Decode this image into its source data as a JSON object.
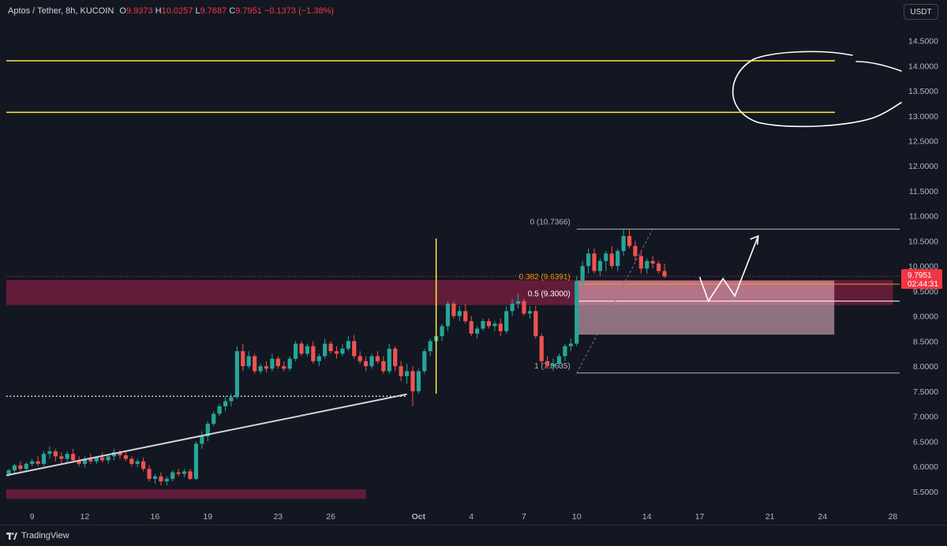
{
  "header": {
    "symbol": "Aptos / Tether, 8h, KUCOIN",
    "open_label": "O",
    "open": "9.9373",
    "high_label": "H",
    "high": "10.0257",
    "low_label": "L",
    "low": "9.7687",
    "close_label": "C",
    "close": "9.7951",
    "change": "−0.1373 (−1.38%)"
  },
  "currency_button": "USDT",
  "footer": {
    "brand": "TradingView",
    "logo_icon": "tradingview-logo-icon"
  },
  "colors": {
    "background": "#131722",
    "up": "#26a69a",
    "down": "#ef5350",
    "level_line": "#ffeb3b",
    "supply_zone": "#6b1d3c",
    "demand_box": "#f8bbd0",
    "fib_line": "#b2b5be",
    "fib_orange": "#ff9800",
    "price_tag": "#f23645"
  },
  "chart_data": {
    "type": "candlestick",
    "symbol": "Aptos / Tether",
    "interval": "8h",
    "exchange": "KUCOIN",
    "ylim": [
      5.15,
      14.95
    ],
    "y_ticks": [
      "5.5000",
      "6.0000",
      "6.5000",
      "7.0000",
      "7.5000",
      "8.0000",
      "8.5000",
      "9.0000",
      "9.5000",
      "10.0000",
      "10.5000",
      "11.0000",
      "11.5000",
      "12.0000",
      "12.5000",
      "13.0000",
      "13.5000",
      "14.0000",
      "14.5000"
    ],
    "x_ticks": [
      {
        "label": "9",
        "i": 4
      },
      {
        "label": "12",
        "i": 13
      },
      {
        "label": "16",
        "i": 25
      },
      {
        "label": "19",
        "i": 34
      },
      {
        "label": "23",
        "i": 46
      },
      {
        "label": "26",
        "i": 55
      },
      {
        "label": "Oct",
        "i": 70,
        "bold": true
      },
      {
        "label": "4",
        "i": 79
      },
      {
        "label": "7",
        "i": 88
      },
      {
        "label": "10",
        "i": 97
      },
      {
        "label": "14",
        "i": 109
      },
      {
        "label": "17",
        "i": 118
      },
      {
        "label": "21",
        "i": 130
      },
      {
        "label": "24",
        "i": 139
      },
      {
        "label": "28",
        "i": 151
      }
    ],
    "candles": [
      [
        5.85,
        5.95,
        5.8,
        5.92
      ],
      [
        5.92,
        6.05,
        5.85,
        6.02
      ],
      [
        6.02,
        6.1,
        5.9,
        5.95
      ],
      [
        5.95,
        6.08,
        5.9,
        6.05
      ],
      [
        6.05,
        6.15,
        6.0,
        6.1
      ],
      [
        6.1,
        6.2,
        6.0,
        6.05
      ],
      [
        6.05,
        6.3,
        6.0,
        6.25
      ],
      [
        6.25,
        6.4,
        6.15,
        6.3
      ],
      [
        6.3,
        6.35,
        6.1,
        6.2
      ],
      [
        6.2,
        6.28,
        6.05,
        6.15
      ],
      [
        6.15,
        6.3,
        6.05,
        6.25
      ],
      [
        6.25,
        6.35,
        6.1,
        6.12
      ],
      [
        6.12,
        6.2,
        6.0,
        6.05
      ],
      [
        6.05,
        6.2,
        5.98,
        6.15
      ],
      [
        6.15,
        6.25,
        6.05,
        6.1
      ],
      [
        6.1,
        6.2,
        6.05,
        6.18
      ],
      [
        6.18,
        6.28,
        6.08,
        6.12
      ],
      [
        6.12,
        6.22,
        6.05,
        6.2
      ],
      [
        6.2,
        6.35,
        6.12,
        6.28
      ],
      [
        6.28,
        6.32,
        6.15,
        6.22
      ],
      [
        6.22,
        6.3,
        6.1,
        6.15
      ],
      [
        6.15,
        6.2,
        6.0,
        6.05
      ],
      [
        6.05,
        6.15,
        5.98,
        6.1
      ],
      [
        6.1,
        6.18,
        5.9,
        5.95
      ],
      [
        5.95,
        6.02,
        5.7,
        5.75
      ],
      [
        5.75,
        5.85,
        5.65,
        5.8
      ],
      [
        5.8,
        5.88,
        5.62,
        5.7
      ],
      [
        5.7,
        5.8,
        5.62,
        5.75
      ],
      [
        5.75,
        5.92,
        5.7,
        5.88
      ],
      [
        5.88,
        5.95,
        5.8,
        5.85
      ],
      [
        5.85,
        5.95,
        5.78,
        5.9
      ],
      [
        5.9,
        5.95,
        5.72,
        5.75
      ],
      [
        5.75,
        6.5,
        5.72,
        6.45
      ],
      [
        6.45,
        6.7,
        6.35,
        6.6
      ],
      [
        6.6,
        6.9,
        6.5,
        6.85
      ],
      [
        6.85,
        7.1,
        6.8,
        7.05
      ],
      [
        7.05,
        7.25,
        7.0,
        7.2
      ],
      [
        7.2,
        7.4,
        7.1,
        7.3
      ],
      [
        7.3,
        7.45,
        7.2,
        7.38
      ],
      [
        7.38,
        8.4,
        7.35,
        8.3
      ],
      [
        8.3,
        8.45,
        7.9,
        8.0
      ],
      [
        8.0,
        8.3,
        7.95,
        8.2
      ],
      [
        8.2,
        8.25,
        7.85,
        7.9
      ],
      [
        7.9,
        8.05,
        7.85,
        8.0
      ],
      [
        8.0,
        8.1,
        7.88,
        7.95
      ],
      [
        7.95,
        8.25,
        7.9,
        8.15
      ],
      [
        8.15,
        8.2,
        7.95,
        8.0
      ],
      [
        8.0,
        8.1,
        7.9,
        7.95
      ],
      [
        7.95,
        8.2,
        7.9,
        8.15
      ],
      [
        8.15,
        8.5,
        8.1,
        8.45
      ],
      [
        8.45,
        8.5,
        8.2,
        8.25
      ],
      [
        8.25,
        8.45,
        8.2,
        8.4
      ],
      [
        8.4,
        8.5,
        8.05,
        8.1
      ],
      [
        8.1,
        8.25,
        8.0,
        8.2
      ],
      [
        8.2,
        8.55,
        8.15,
        8.45
      ],
      [
        8.45,
        8.5,
        8.25,
        8.3
      ],
      [
        8.3,
        8.4,
        8.15,
        8.25
      ],
      [
        8.25,
        8.45,
        8.2,
        8.35
      ],
      [
        8.35,
        8.6,
        8.3,
        8.5
      ],
      [
        8.5,
        8.62,
        8.15,
        8.2
      ],
      [
        8.2,
        8.3,
        8.05,
        8.1
      ],
      [
        8.1,
        8.2,
        7.9,
        8.0
      ],
      [
        8.0,
        8.25,
        7.95,
        8.2
      ],
      [
        8.2,
        8.3,
        8.05,
        8.1
      ],
      [
        8.1,
        8.2,
        7.85,
        7.9
      ],
      [
        7.9,
        8.45,
        7.85,
        8.35
      ],
      [
        8.35,
        8.4,
        7.9,
        8.0
      ],
      [
        8.0,
        8.1,
        7.7,
        7.8
      ],
      [
        7.8,
        8.05,
        7.65,
        7.9
      ],
      [
        7.9,
        8.0,
        7.2,
        7.5
      ],
      [
        7.5,
        7.95,
        7.45,
        7.9
      ],
      [
        7.9,
        8.35,
        7.85,
        8.3
      ],
      [
        8.3,
        8.55,
        8.2,
        8.5
      ],
      [
        8.5,
        8.7,
        8.4,
        8.6
      ],
      [
        8.6,
        8.85,
        8.5,
        8.8
      ],
      [
        8.8,
        9.3,
        8.7,
        9.25
      ],
      [
        9.25,
        9.3,
        8.95,
        9.0
      ],
      [
        9.0,
        9.2,
        8.9,
        9.1
      ],
      [
        9.1,
        9.25,
        8.85,
        8.9
      ],
      [
        8.9,
        9.0,
        8.6,
        8.65
      ],
      [
        8.65,
        8.8,
        8.55,
        8.75
      ],
      [
        8.75,
        8.95,
        8.7,
        8.9
      ],
      [
        8.9,
        8.95,
        8.75,
        8.8
      ],
      [
        8.8,
        8.9,
        8.7,
        8.85
      ],
      [
        8.85,
        8.95,
        8.6,
        8.7
      ],
      [
        8.7,
        9.2,
        8.65,
        9.1
      ],
      [
        9.1,
        9.35,
        9.0,
        9.25
      ],
      [
        9.25,
        9.45,
        9.15,
        9.3
      ],
      [
        9.3,
        9.35,
        9.0,
        9.05
      ],
      [
        9.05,
        9.2,
        8.95,
        9.1
      ],
      [
        9.1,
        9.2,
        8.55,
        8.6
      ],
      [
        8.6,
        8.65,
        8.05,
        8.1
      ],
      [
        8.1,
        8.2,
        7.95,
        8.0
      ],
      [
        8.0,
        8.15,
        7.9,
        8.05
      ],
      [
        8.05,
        8.25,
        7.98,
        8.2
      ],
      [
        8.2,
        8.45,
        8.1,
        8.4
      ],
      [
        8.4,
        8.55,
        8.3,
        8.45
      ],
      [
        8.45,
        9.8,
        8.4,
        9.7
      ],
      [
        9.7,
        10.1,
        9.6,
        10.0
      ],
      [
        10.0,
        10.35,
        9.85,
        10.25
      ],
      [
        10.25,
        10.35,
        9.85,
        9.9
      ],
      [
        9.9,
        10.15,
        9.8,
        10.1
      ],
      [
        10.1,
        10.3,
        9.9,
        10.25
      ],
      [
        10.25,
        10.4,
        9.95,
        10.0
      ],
      [
        10.0,
        10.35,
        9.9,
        10.3
      ],
      [
        10.3,
        10.75,
        10.2,
        10.6
      ],
      [
        10.6,
        10.74,
        10.35,
        10.4
      ],
      [
        10.4,
        10.5,
        10.1,
        10.2
      ],
      [
        10.2,
        10.3,
        9.85,
        9.95
      ],
      [
        9.95,
        10.15,
        9.85,
        10.1
      ],
      [
        10.1,
        10.2,
        9.95,
        10.05
      ],
      [
        10.05,
        10.1,
        9.85,
        9.9
      ],
      [
        9.9,
        10.05,
        9.76,
        9.79
      ]
    ],
    "horizontal_levels": [
      {
        "price": 14.1,
        "color": "#ffeb3b"
      },
      {
        "price": 13.07,
        "color": "#ffeb3b"
      }
    ],
    "zones": [
      {
        "from_i": -2,
        "to_i": 151,
        "low": 9.22,
        "high": 9.72,
        "color": "#6b1d3c"
      },
      {
        "from_i": -2,
        "to_i": 61,
        "low": 5.35,
        "high": 5.54,
        "color": "#6b1d3c"
      },
      {
        "from_i": 97,
        "to_i": 141,
        "low": 8.63,
        "high": 9.71,
        "color": "#f8bbd0"
      }
    ],
    "fibonacci": {
      "from_i": 97,
      "to_i": 151,
      "levels": [
        {
          "label": "0 (10.7366)",
          "ratio": 0,
          "price": 10.7366,
          "color": "#b2b5be"
        },
        {
          "label": "0.382 (9.6391)",
          "ratio": 0.382,
          "price": 9.6391,
          "color": "#ff9800"
        },
        {
          "label": "0.5 (9.3000)",
          "ratio": 0.5,
          "price": 9.3,
          "color": "#ffffff"
        },
        {
          "label": "1 (7.8635)",
          "ratio": 1,
          "price": 7.8635,
          "color": "#b2b5be"
        }
      ]
    },
    "trendline": {
      "from": {
        "i": -2,
        "price": 5.82
      },
      "to": {
        "i": 68,
        "price": 7.44
      }
    },
    "dotted_level": {
      "price": 7.4,
      "from_i": -2,
      "to_i": 68
    },
    "vertical_marker": {
      "i": 73,
      "from": 7.45,
      "to": 10.55,
      "color": "#ffeb3b"
    },
    "projection_path": [
      {
        "i": 118,
        "price": 9.78
      },
      {
        "i": 119.5,
        "price": 9.3
      },
      {
        "i": 122,
        "price": 9.75
      },
      {
        "i": 124,
        "price": 9.4
      },
      {
        "i": 128,
        "price": 10.6
      }
    ],
    "last_price": {
      "value": "9.7951",
      "countdown": "02:44:31"
    }
  }
}
